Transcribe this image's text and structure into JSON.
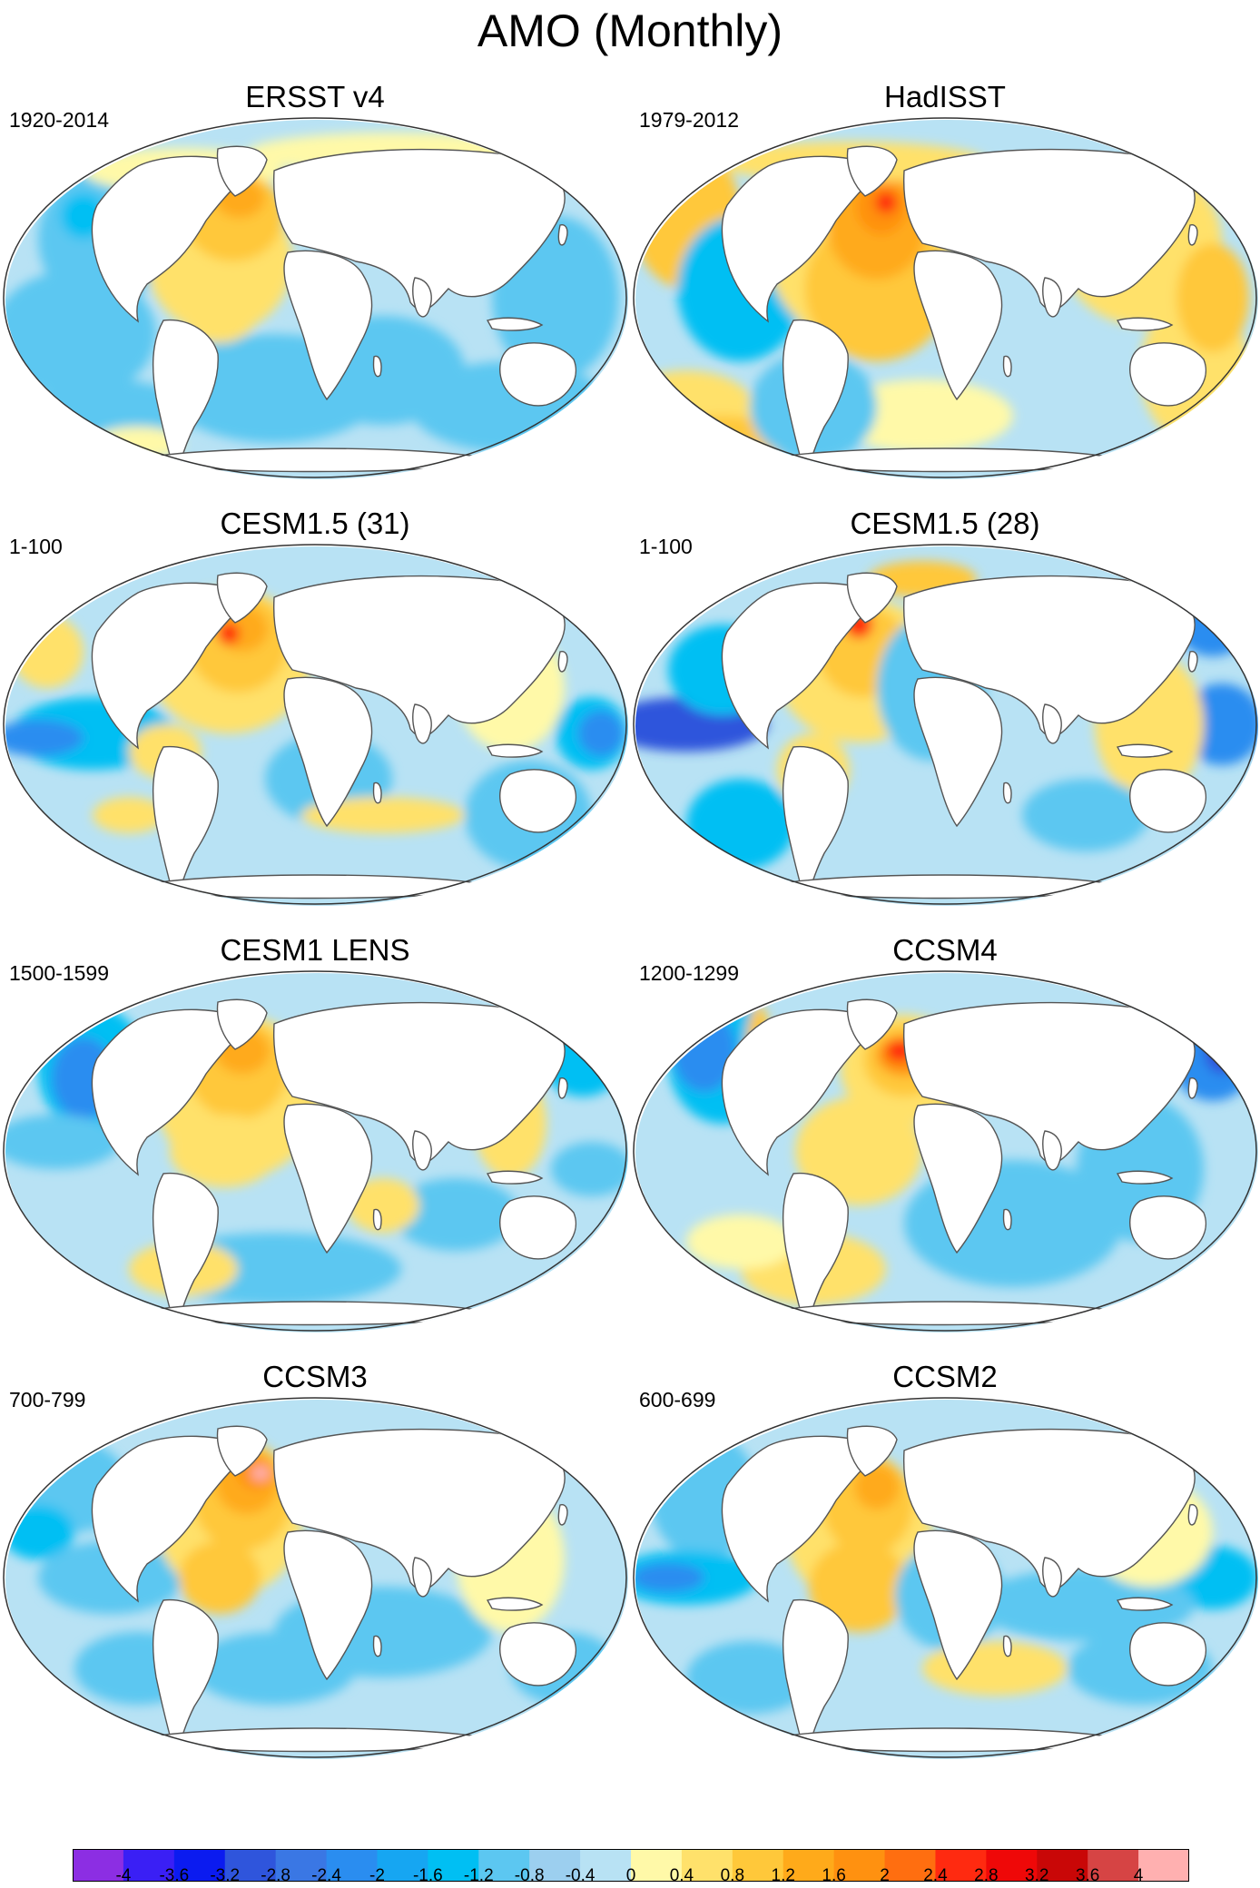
{
  "title": "AMO (Monthly)",
  "panels": [
    {
      "name": "ERSST v4",
      "period": "1920-2014",
      "pattern": "ersst"
    },
    {
      "name": "HadISST",
      "period": "1979-2012",
      "pattern": "hadisst"
    },
    {
      "name": "CESM1.5 (31)",
      "period": "1-100",
      "pattern": "cesm15a"
    },
    {
      "name": "CESM1.5 (28)",
      "period": "1-100",
      "pattern": "cesm15b"
    },
    {
      "name": "CESM1 LENS",
      "period": "1500-1599",
      "pattern": "lens"
    },
    {
      "name": "CCSM4",
      "period": "1200-1299",
      "pattern": "ccsm4"
    },
    {
      "name": "CCSM3",
      "period": "700-799",
      "pattern": "ccsm3"
    },
    {
      "name": "CCSM2",
      "period": "600-699",
      "pattern": "ccsm2"
    }
  ],
  "colorbar": {
    "colors": [
      "#8C2EE3",
      "#3A1FF5",
      "#0B1BF0",
      "#2F55DC",
      "#3A77E4",
      "#2A8DF0",
      "#16A6F2",
      "#00BFF3",
      "#5CC7F1",
      "#9CCFEF",
      "#B8E2F4",
      "#FFF9A8",
      "#FFE16B",
      "#FFC83A",
      "#FFAA1A",
      "#FF9110",
      "#FF6E10",
      "#FF2A10",
      "#EF0808",
      "#C90707",
      "#D64444",
      "#FFB0B0"
    ],
    "labels": [
      "-4",
      "-3.6",
      "-3.2",
      "-2.8",
      "-2.4",
      "-2",
      "-1.6",
      "-1.2",
      "-0.8",
      "-0.4",
      "0",
      "0.4",
      "0.8",
      "1.2",
      "1.6",
      "2",
      "2.4",
      "2.8",
      "3.2",
      "3.6",
      "4"
    ]
  }
}
